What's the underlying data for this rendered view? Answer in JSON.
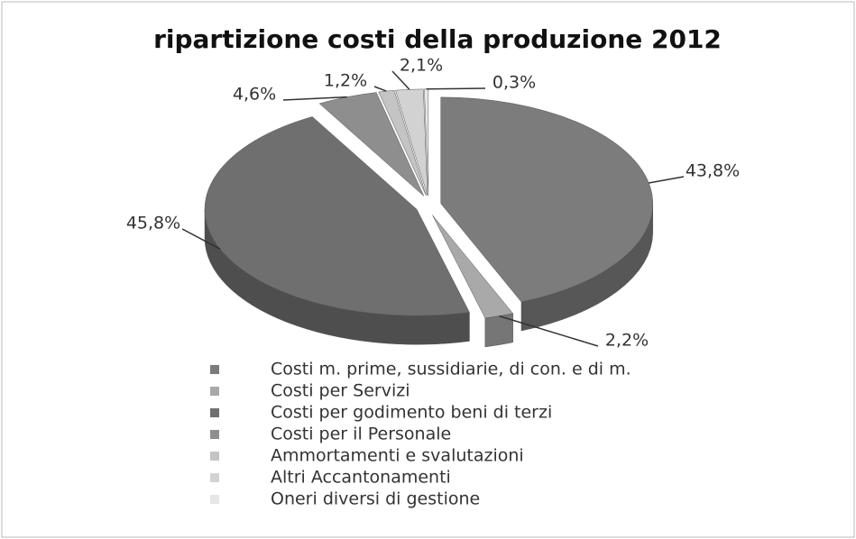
{
  "chart_data": {
    "type": "pie",
    "title": "ripartizione costi della produzione 2012",
    "categories": [
      "Costi m. prime, sussidiarie, di con. e di m.",
      "Costi per Servizi",
      "Costi per godimento beni di terzi",
      "Costi per il Personale",
      "Ammortamenti e svalutazioni",
      "Altri Accantonamenti",
      "Oneri diversi di gestione"
    ],
    "values": [
      43.8,
      2.2,
      45.8,
      4.6,
      1.2,
      2.1,
      0.3
    ],
    "value_labels": [
      "43,8%",
      "2,2%",
      "45,8%",
      "4,6%",
      "1,2%",
      "2,1%",
      "0,3%"
    ],
    "colors": [
      "#7c7c7c",
      "#a9a9a9",
      "#6f6f6f",
      "#8e8e8e",
      "#c4c4c4",
      "#d2d2d2",
      "#e6e6e6"
    ],
    "legend": "bottom"
  }
}
